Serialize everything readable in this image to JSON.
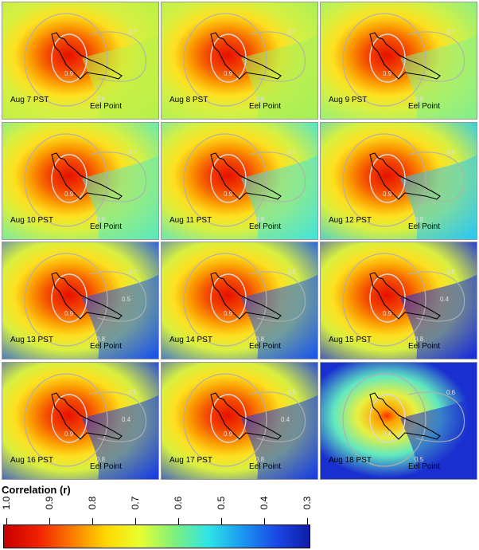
{
  "panels": [
    {
      "label": "Aug 7 PST",
      "location": "Eel Point",
      "contours": [
        "0.9",
        "0.8",
        "0.7"
      ],
      "east_shade": "#b8f04a"
    },
    {
      "label": "Aug 8 PST",
      "location": "Eel Point",
      "contours": [
        "0.9",
        "0.8",
        "0.7"
      ],
      "east_shade": "#a6ef5a"
    },
    {
      "label": "Aug 9 PST",
      "location": "Eel Point",
      "contours": [
        "0.9",
        "0.8",
        "0.7"
      ],
      "east_shade": "#86ee8a"
    },
    {
      "label": "Aug 10 PST",
      "location": "Eel Point",
      "contours": [
        "0.9",
        "0.8",
        "0.7"
      ],
      "east_shade": "#5fe9b8"
    },
    {
      "label": "Aug 11 PST",
      "location": "Eel Point",
      "contours": [
        "0.9",
        "0.8",
        "0.7"
      ],
      "east_shade": "#49e3d6"
    },
    {
      "label": "Aug 12 PST",
      "location": "Eel Point",
      "contours": [
        "0.9",
        "0.8",
        "0.5"
      ],
      "east_shade": "#2fc8ee"
    },
    {
      "label": "Aug 13 PST",
      "location": "Eel Point",
      "contours": [
        "0.9",
        "0.8",
        "0.7",
        "0.5"
      ],
      "east_shade": "#1d55e8"
    },
    {
      "label": "Aug 14 PST",
      "location": "Eel Point",
      "contours": [
        "0.9",
        "0.8",
        "0.5"
      ],
      "east_shade": "#1d5ae8"
    },
    {
      "label": "Aug 15 PST",
      "location": "Eel Point",
      "contours": [
        "0.9",
        "0.8",
        "0.5",
        "0.4"
      ],
      "east_shade": "#1a2fd8"
    },
    {
      "label": "Aug 16 PST",
      "location": "Eel Point",
      "contours": [
        "0.9",
        "0.8",
        "0.5",
        "0.4"
      ],
      "east_shade": "#1a3fe0"
    },
    {
      "label": "Aug 17 PST",
      "location": "Eel Point",
      "contours": [
        "0.9",
        "0.8",
        "0.5",
        "0.4"
      ],
      "east_shade": "#1a3fe0"
    },
    {
      "label": "Aug 18 PST",
      "location": "Eel Point",
      "contours": [
        "0.4",
        "0.5",
        "0.6"
      ],
      "east_shade": "#1a2fd0"
    }
  ],
  "legend": {
    "title": "Correlation (r)",
    "ticks": [
      "1.0",
      "0.9",
      "0.8",
      "0.7",
      "0.6",
      "0.5",
      "0.4",
      "0.3"
    ],
    "colors": [
      "#c80000",
      "#f02000",
      "#fa7a00",
      "#ffd700",
      "#e8ff30",
      "#7ff07a",
      "#2fe6e6",
      "#1a9af0",
      "#1a4ae8",
      "#101ca8"
    ]
  }
}
